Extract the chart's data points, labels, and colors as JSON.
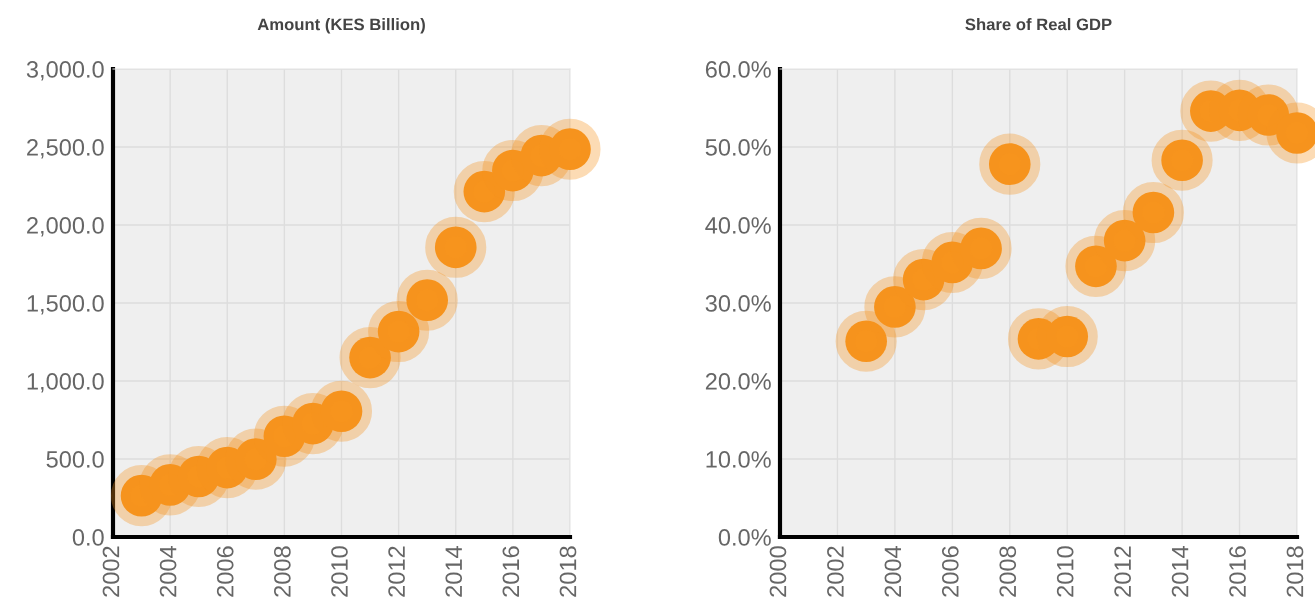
{
  "chart_data": [
    {
      "type": "scatter",
      "title": "Amount (KES Billion)",
      "x": [
        2003,
        2004,
        2005,
        2006,
        2007,
        2008,
        2009,
        2010,
        2011,
        2012,
        2013,
        2014,
        2015,
        2016,
        2017,
        2018
      ],
      "series": [
        {
          "color": "#f7941d",
          "values": [
            265,
            334,
            388,
            445,
            499,
            646,
            727,
            806,
            1150,
            1317,
            1518,
            1857,
            2214,
            2349,
            2445,
            2486
          ]
        }
      ],
      "xlim": [
        2002,
        2018
      ],
      "xticks": [
        2002,
        2004,
        2006,
        2008,
        2010,
        2012,
        2014,
        2016,
        2018
      ],
      "ylim": [
        0,
        3000
      ],
      "yticks": [
        {
          "value": 0,
          "label": "0.0"
        },
        {
          "value": 500,
          "label": "500.0"
        },
        {
          "value": 1000,
          "label": "1,000.0"
        },
        {
          "value": 1500,
          "label": "1,500.0"
        },
        {
          "value": 2000,
          "label": "2,000.0"
        },
        {
          "value": 2500,
          "label": "2,500.0"
        },
        {
          "value": 3000,
          "label": "3,000.0"
        }
      ],
      "grid": true,
      "marker": "circle",
      "legend": false
    },
    {
      "type": "scatter",
      "title": "Share of Real GDP",
      "x": [
        2003,
        2004,
        2005,
        2006,
        2007,
        2008,
        2009,
        2010,
        2011,
        2012,
        2013,
        2014,
        2015,
        2016,
        2017,
        2018
      ],
      "series": [
        {
          "color": "#f7941d",
          "values": [
            25.1,
            29.5,
            33.0,
            35.2,
            37.0,
            47.8,
            25.4,
            25.7,
            34.7,
            38.0,
            41.6,
            48.3,
            54.6,
            54.7,
            54.1,
            51.8
          ]
        }
      ],
      "xlim": [
        2000,
        2018
      ],
      "xticks": [
        2000,
        2002,
        2004,
        2006,
        2008,
        2010,
        2012,
        2014,
        2016,
        2018
      ],
      "ylim": [
        0,
        60
      ],
      "yticks": [
        {
          "value": 0,
          "label": "0.0%"
        },
        {
          "value": 10,
          "label": "10.0%"
        },
        {
          "value": 20,
          "label": "20.0%"
        },
        {
          "value": 30,
          "label": "30.0%"
        },
        {
          "value": 40,
          "label": "40.0%"
        },
        {
          "value": 50,
          "label": "50.0%"
        },
        {
          "value": 60,
          "label": "60.0%"
        }
      ],
      "grid": true,
      "marker": "circle",
      "legend": false
    }
  ]
}
